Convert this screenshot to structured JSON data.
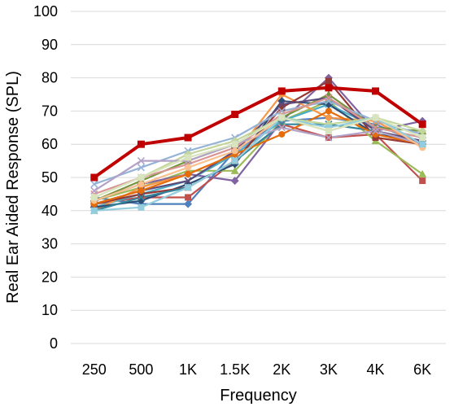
{
  "chart_data": {
    "type": "line",
    "xlabel": "Frequency",
    "ylabel": "Real Ear Aided Response (SPL)",
    "categories": [
      "250",
      "500",
      "1K",
      "1.5K",
      "2K",
      "3K",
      "4K",
      "6K"
    ],
    "ylim": [
      0,
      100
    ],
    "yticks": [
      0,
      10,
      20,
      30,
      40,
      50,
      60,
      70,
      80,
      90,
      100
    ],
    "grid": "horizontal",
    "legend": "none",
    "series": [
      {
        "color": "#c00000",
        "marker": "square",
        "emphasis": true,
        "values": [
          50,
          60,
          62,
          69,
          76,
          77,
          76,
          66
        ]
      },
      {
        "color": "#4f81bd",
        "marker": "diamond",
        "values": [
          44,
          42,
          42,
          58,
          67,
          68,
          66,
          60
        ]
      },
      {
        "color": "#c0504d",
        "marker": "square",
        "values": [
          42,
          44,
          44,
          55,
          66,
          62,
          63,
          49
        ]
      },
      {
        "color": "#9bbb59",
        "marker": "triangle",
        "values": [
          43,
          47,
          52,
          52,
          67,
          73,
          61,
          51
        ]
      },
      {
        "color": "#8064a2",
        "marker": "diamond",
        "values": [
          43,
          48,
          51,
          49,
          67,
          80,
          64,
          67
        ]
      },
      {
        "color": "#4bacc6",
        "marker": "x",
        "values": [
          41,
          45,
          49,
          57,
          67,
          72,
          65,
          62
        ]
      },
      {
        "color": "#f79646",
        "marker": "circle",
        "values": [
          40,
          47,
          51,
          57,
          75,
          68,
          67,
          59
        ]
      },
      {
        "color": "#2c4d75",
        "marker": "diamond",
        "values": [
          41,
          43,
          48,
          54,
          73,
          72,
          63,
          61
        ]
      },
      {
        "color": "#953735",
        "marker": "square",
        "values": [
          42,
          45,
          47,
          55,
          71,
          79,
          62,
          60
        ]
      },
      {
        "color": "#77933c",
        "marker": "triangle",
        "values": [
          43,
          49,
          55,
          60,
          68,
          75,
          65,
          64
        ]
      },
      {
        "color": "#5f497a",
        "marker": "x",
        "values": [
          42,
          46,
          49,
          58,
          72,
          74,
          64,
          61
        ]
      },
      {
        "color": "#31859c",
        "marker": "x",
        "values": [
          40,
          44,
          47,
          55,
          66,
          66,
          64,
          60
        ]
      },
      {
        "color": "#e46c0a",
        "marker": "circle",
        "values": [
          42,
          46,
          51,
          57,
          63,
          70,
          63,
          60
        ]
      },
      {
        "color": "#95b3d7",
        "marker": "x",
        "values": [
          48,
          53,
          58,
          62,
          70,
          73,
          67,
          63
        ]
      },
      {
        "color": "#d99694",
        "marker": "x",
        "values": [
          45,
          50,
          54,
          59,
          69,
          74,
          65,
          62
        ]
      },
      {
        "color": "#c3d69b",
        "marker": "diamond",
        "values": [
          44,
          50,
          57,
          61,
          68,
          66,
          68,
          64
        ]
      },
      {
        "color": "#b3a2c7",
        "marker": "x",
        "values": [
          46,
          55,
          55,
          60,
          65,
          62,
          64,
          60
        ]
      },
      {
        "color": "#fac090",
        "marker": "circle",
        "values": [
          43,
          48,
          53,
          58,
          68,
          64,
          68,
          59
        ]
      },
      {
        "color": "#93cddd",
        "marker": "square",
        "values": [
          40,
          41,
          47,
          55,
          68,
          65,
          68,
          60
        ]
      },
      {
        "color": "#d7e4bd",
        "marker": "square",
        "values": [
          44,
          50,
          56,
          60,
          68,
          64,
          68,
          62
        ]
      }
    ]
  }
}
